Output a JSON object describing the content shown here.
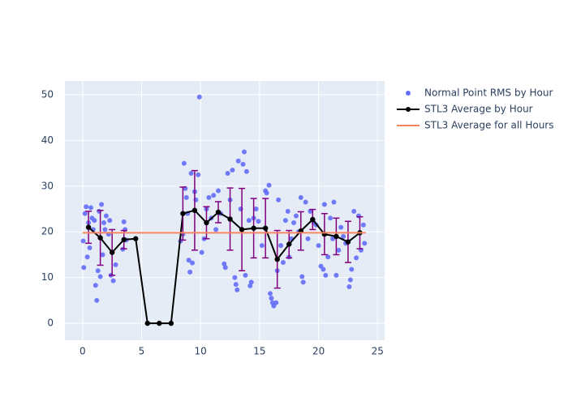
{
  "chart_data": {
    "type": "scatter",
    "xlim": [
      -1.5,
      25.6
    ],
    "ylim": [
      -3.7,
      53
    ],
    "xticks": [
      0,
      5,
      10,
      15,
      20,
      25
    ],
    "yticks": [
      0,
      10,
      20,
      30,
      40,
      50
    ],
    "grid": true,
    "series": [
      {
        "name": "Normal Point RMS by Hour",
        "color": "#636efa",
        "mode": "markers",
        "x": [
          0.05,
          0.1,
          0.2,
          0.3,
          0.4,
          0.5,
          0.6,
          0.7,
          0.8,
          0.9,
          1.0,
          1.1,
          1.2,
          1.3,
          1.4,
          1.5,
          1.6,
          1.7,
          1.8,
          1.9,
          2.0,
          2.2,
          2.3,
          2.4,
          2.6,
          2.8,
          3.4,
          3.5,
          3.6,
          3.7,
          4.5,
          8.3,
          8.5,
          8.6,
          8.7,
          8.8,
          8.9,
          9.0,
          9.1,
          9.2,
          9.3,
          9.5,
          9.6,
          9.8,
          9.9,
          10.1,
          10.3,
          10.5,
          10.7,
          10.9,
          11.1,
          11.3,
          11.5,
          11.7,
          12.0,
          12.1,
          12.3,
          12.5,
          12.7,
          12.9,
          13.0,
          13.1,
          13.2,
          13.4,
          13.6,
          13.7,
          13.8,
          13.9,
          14.1,
          14.2,
          14.3,
          14.5,
          14.7,
          14.9,
          15.2,
          15.5,
          15.6,
          15.8,
          15.9,
          16.0,
          16.1,
          16.2,
          16.4,
          16.5,
          16.6,
          16.8,
          17.0,
          17.2,
          17.4,
          17.5,
          17.7,
          17.9,
          18.1,
          18.3,
          18.5,
          18.6,
          18.7,
          18.9,
          19.1,
          19.3,
          19.6,
          19.8,
          20.0,
          20.2,
          20.4,
          20.5,
          20.6,
          20.8,
          21.0,
          21.2,
          21.3,
          21.5,
          21.7,
          21.9,
          22.1,
          22.3,
          22.6,
          22.7,
          22.8,
          23.0,
          23.2,
          23.4,
          23.6,
          23.8,
          23.9
        ],
        "values": [
          18,
          12.2,
          24,
          25.5,
          14.5,
          22,
          16.5,
          25.3,
          23,
          20.5,
          22.5,
          8.3,
          5,
          11.5,
          24.5,
          10.2,
          26,
          15,
          22,
          20.5,
          23.5,
          19.5,
          22.5,
          10.5,
          9.3,
          12.8,
          16.2,
          22.2,
          20.5,
          18.2,
          18.5,
          18,
          19.5,
          35,
          29.5,
          27.5,
          24,
          13.8,
          11.2,
          32.8,
          13.2,
          28.8,
          27,
          32.5,
          49.5,
          15.5,
          18.5,
          25,
          27.5,
          23,
          28,
          20.5,
          29,
          24,
          13,
          12.2,
          32.8,
          27,
          33.5,
          10,
          8.5,
          7.3,
          35.5,
          25,
          34.8,
          37.5,
          10.5,
          33.2,
          22.5,
          8.2,
          9,
          23,
          25,
          22.3,
          17,
          29,
          28.5,
          30.2,
          6.5,
          5.5,
          4.5,
          3.8,
          4.5,
          11.5,
          27,
          17,
          13.3,
          22.5,
          24.5,
          14.5,
          18.5,
          22,
          23.5,
          20,
          27.5,
          10.2,
          9,
          26.5,
          18.5,
          24.5,
          22,
          21.5,
          17,
          12.5,
          11.8,
          26,
          10.5,
          14.5,
          23,
          18.5,
          26.5,
          10.5,
          16,
          21,
          19,
          17.5,
          8,
          9.5,
          11.8,
          24.5,
          14.3,
          23.5,
          16,
          21.5,
          17.5
        ]
      },
      {
        "name": "STL3 Average by Hour",
        "color": "#000000",
        "mode": "lines+markers",
        "error_color": "#800080",
        "x": [
          0.5,
          1.5,
          2.5,
          3.5,
          4.5,
          5.5,
          6.5,
          7.5,
          8.5,
          9.5,
          10.5,
          11.5,
          12.5,
          13.5,
          14.5,
          15.5,
          16.5,
          17.5,
          18.5,
          19.5,
          20.5,
          21.5,
          22.5,
          23.5
        ],
        "values": [
          21.0,
          18.7,
          15.5,
          18.3,
          18.5,
          0,
          0,
          0,
          24.0,
          24.7,
          22.0,
          24.3,
          22.8,
          20.5,
          20.8,
          20.8,
          14.0,
          17.3,
          20.2,
          22.7,
          19.5,
          19.0,
          17.8,
          19.8
        ],
        "error": [
          3.5,
          6,
          5,
          2,
          0,
          0,
          0,
          0,
          5.8,
          8.7,
          3.5,
          2.3,
          6.8,
          9,
          6.5,
          6.5,
          6.3,
          3,
          4.2,
          2.2,
          4.5,
          4,
          4.5,
          3.5
        ]
      },
      {
        "name": "STL3 Average for all Hours",
        "color": "#f4845f",
        "mode": "lines",
        "x": [
          0,
          24
        ],
        "values": [
          19.8,
          19.8
        ]
      }
    ]
  }
}
